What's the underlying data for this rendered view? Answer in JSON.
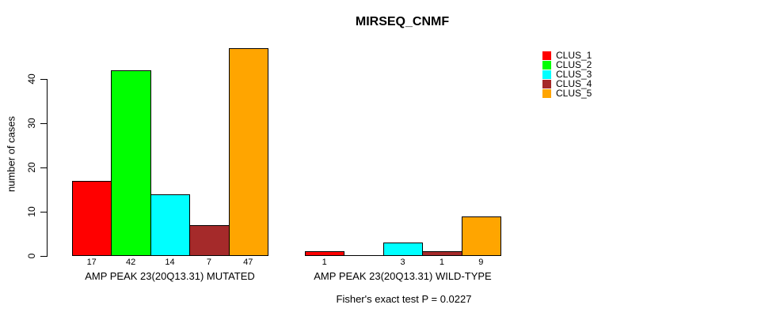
{
  "chart_data": {
    "type": "bar",
    "title": "MIRSEQ_CNMF",
    "ylabel": "number of cases",
    "xlabel": "",
    "ylim": [
      0,
      47
    ],
    "yticks": [
      0,
      10,
      20,
      30,
      40
    ],
    "grid": false,
    "legend_position": "top-right",
    "series_names": [
      "CLUS_1",
      "CLUS_2",
      "CLUS_3",
      "CLUS_4",
      "CLUS_5"
    ],
    "colors": [
      "#FF0000",
      "#00FF00",
      "#00FFFF",
      "#A52A2A",
      "#FFA500"
    ],
    "groups": [
      {
        "label": "AMP PEAK 23(20Q13.31) MUTATED",
        "values": [
          17,
          42,
          14,
          7,
          47
        ],
        "bar_labels": [
          "17",
          "42",
          "14",
          "7",
          "47"
        ]
      },
      {
        "label": "AMP PEAK 23(20Q13.31) WILD-TYPE",
        "values": [
          1,
          0,
          3,
          1,
          9
        ],
        "bar_labels": [
          "1",
          "",
          "3",
          "1",
          "9"
        ]
      }
    ],
    "annotation": "Fisher's exact test P = 0.0227"
  }
}
